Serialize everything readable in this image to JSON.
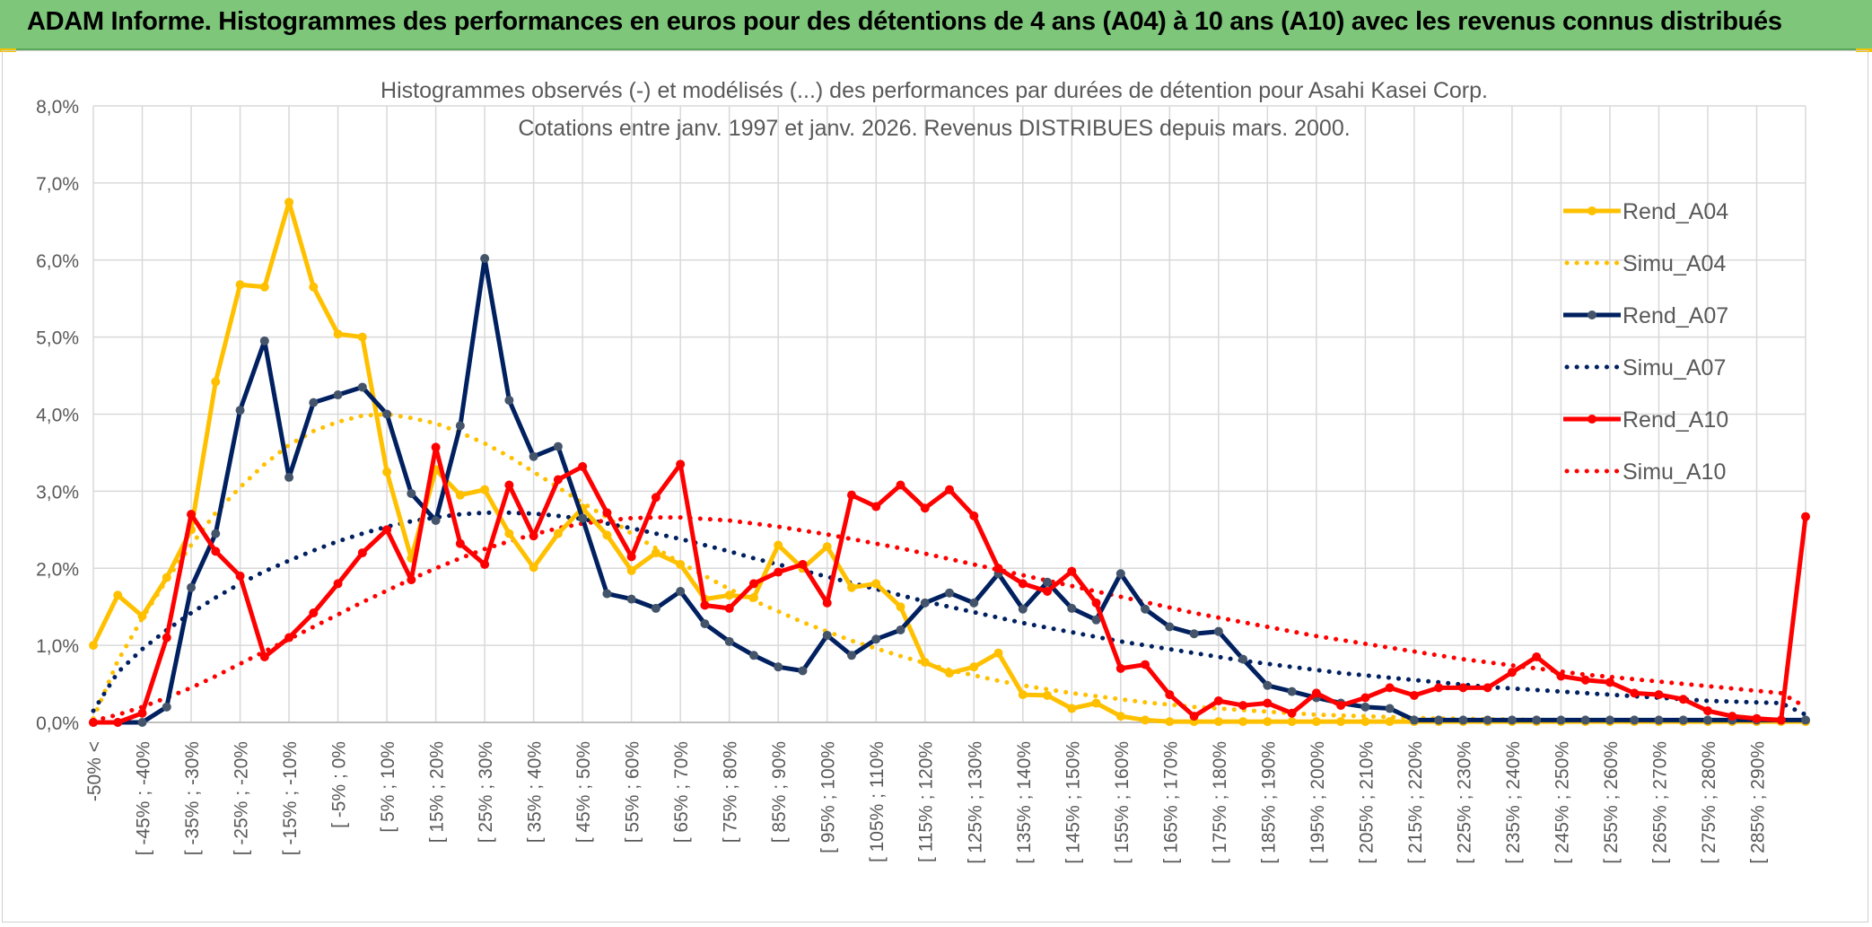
{
  "header": {
    "title": "ADAM Informe. Histogrammes des performances en euros pour des détentions de 4 ans (A04) à 10 ans (A10) avec les revenus connus distribués"
  },
  "chart_data": {
    "type": "line",
    "title": "Histogrammes observés (-) et modélisés (...) des performances par durées de détention pour Asahi Kasei Corp.",
    "subtitle": "Cotations entre janv. 1997 et janv. 2026. Revenus DISTRIBUES depuis mars. 2000.",
    "xlabel": "",
    "ylabel": "",
    "ylim": [
      0,
      8
    ],
    "yticks": [
      "0,0%",
      "1,0%",
      "2,0%",
      "3,0%",
      "4,0%",
      "5,0%",
      "6,0%",
      "7,0%",
      "8,0%"
    ],
    "grid": true,
    "legend_position": "top-right",
    "x_tick_labels": [
      "-50% <",
      "[ -45% ; -40%",
      "[ -35% ; -30%",
      "[ -25% ; -20%",
      "[ -15% ; -10%",
      "[ -5% ; 0%",
      "[ 5% ; 10%",
      "[ 15% ; 20%",
      "[ 25% ; 30%",
      "[ 35% ; 40%",
      "[ 45% ; 50%",
      "[ 55% ; 60%",
      "[ 65% ; 70%",
      "[ 75% ; 80%",
      "[ 85% ; 90%",
      "[ 95% ; 100%",
      "[ 105% ; 110%",
      "[ 115% ; 120%",
      "[ 125% ; 130%",
      "[ 135% ; 140%",
      "[ 145% ; 150%",
      "[ 155% ; 160%",
      "[ 165% ; 170%",
      "[ 175% ; 180%",
      "[ 185% ; 190%",
      "[ 195% ; 200%",
      "[ 205% ; 210%",
      "[ 215% ; 220%",
      "[ 225% ; 230%",
      "[ 235% ; 240%",
      "[ 245% ; 250%",
      "[ 255% ; 260%",
      "[ 265% ; 270%",
      "[ 275% ; 280%",
      "[ 285% ; 290%"
    ],
    "series": [
      {
        "name": "Rend_A04",
        "style": "solid",
        "color": "#ffc000",
        "values": [
          1.0,
          1.65,
          1.38,
          1.88,
          2.5,
          4.42,
          5.68,
          5.65,
          6.75,
          5.65,
          5.04,
          5.0,
          3.25,
          2.13,
          3.28,
          2.95,
          3.02,
          2.45,
          2.01,
          2.45,
          2.78,
          2.43,
          1.97,
          2.2,
          2.05,
          1.6,
          1.65,
          1.62,
          2.3,
          2.0,
          2.28,
          1.75,
          1.8,
          1.5,
          0.78,
          0.64,
          0.72,
          0.9,
          0.36,
          0.35,
          0.18,
          0.25,
          0.08,
          0.03,
          0.01,
          0.01,
          0.01,
          0.01,
          0.01,
          0.01,
          0.01,
          0.01,
          0.01,
          0.01,
          0.01,
          0.01,
          0.01,
          0.01,
          0.01,
          0.01,
          0.01,
          0.01,
          0.01,
          0.01,
          0.01,
          0.01,
          0.01,
          0.01,
          0.01,
          0.01,
          0.01
        ]
      },
      {
        "name": "Simu_A04",
        "style": "dotted",
        "color": "#ffc000",
        "values": [
          0.05,
          0.8,
          1.35,
          1.85,
          2.3,
          2.72,
          3.05,
          3.35,
          3.6,
          3.78,
          3.9,
          3.98,
          4.0,
          3.95,
          3.88,
          3.76,
          3.62,
          3.45,
          3.25,
          3.05,
          2.85,
          2.66,
          2.45,
          2.26,
          2.07,
          1.9,
          1.73,
          1.58,
          1.44,
          1.3,
          1.18,
          1.06,
          0.96,
          0.86,
          0.77,
          0.68,
          0.61,
          0.54,
          0.48,
          0.43,
          0.38,
          0.34,
          0.3,
          0.26,
          0.23,
          0.2,
          0.18,
          0.16,
          0.14,
          0.12,
          0.1,
          0.09,
          0.08,
          0.07,
          0.06,
          0.05,
          0.05,
          0.04,
          0.04,
          0.03,
          0.03,
          0.03,
          0.02,
          0.02,
          0.02,
          0.02,
          0.01,
          0.01,
          0.01,
          0.01,
          0.01
        ]
      },
      {
        "name": "Rend_A07",
        "style": "solid",
        "color": "#002060",
        "values": [
          0.0,
          0.0,
          0.0,
          0.2,
          1.75,
          2.45,
          4.05,
          4.95,
          3.18,
          4.15,
          4.25,
          4.35,
          4.0,
          2.97,
          2.62,
          3.85,
          6.02,
          4.18,
          3.45,
          3.58,
          2.65,
          1.67,
          1.6,
          1.48,
          1.7,
          1.28,
          1.05,
          0.87,
          0.72,
          0.67,
          1.13,
          0.87,
          1.08,
          1.2,
          1.55,
          1.68,
          1.55,
          1.93,
          1.47,
          1.82,
          1.48,
          1.33,
          1.93,
          1.47,
          1.24,
          1.15,
          1.18,
          0.82,
          0.48,
          0.4,
          0.32,
          0.25,
          0.2,
          0.18,
          0.03,
          0.03,
          0.03,
          0.03,
          0.03,
          0.03,
          0.03,
          0.03,
          0.03,
          0.03,
          0.03,
          0.03,
          0.03,
          0.03,
          0.03,
          0.03,
          0.03
        ]
      },
      {
        "name": "Simu_A07",
        "style": "dotted",
        "color": "#002060",
        "values": [
          0.15,
          0.65,
          0.95,
          1.2,
          1.42,
          1.62,
          1.8,
          1.96,
          2.1,
          2.23,
          2.35,
          2.45,
          2.54,
          2.61,
          2.66,
          2.7,
          2.72,
          2.72,
          2.71,
          2.68,
          2.64,
          2.58,
          2.52,
          2.45,
          2.38,
          2.3,
          2.22,
          2.13,
          2.05,
          1.97,
          1.89,
          1.81,
          1.73,
          1.65,
          1.57,
          1.5,
          1.43,
          1.36,
          1.29,
          1.23,
          1.17,
          1.11,
          1.05,
          1.0,
          0.95,
          0.9,
          0.85,
          0.8,
          0.76,
          0.72,
          0.68,
          0.64,
          0.61,
          0.58,
          0.55,
          0.52,
          0.49,
          0.46,
          0.44,
          0.42,
          0.4,
          0.38,
          0.36,
          0.34,
          0.32,
          0.3,
          0.28,
          0.27,
          0.26,
          0.25,
          0.1
        ]
      },
      {
        "name": "Rend_A10",
        "style": "solid",
        "color": "#ff0000",
        "values": [
          0.0,
          0.0,
          0.12,
          1.1,
          2.7,
          2.22,
          1.9,
          0.85,
          1.1,
          1.42,
          1.8,
          2.2,
          2.5,
          1.85,
          3.57,
          2.32,
          2.05,
          3.08,
          2.42,
          3.15,
          3.32,
          2.72,
          2.15,
          2.92,
          3.35,
          1.52,
          1.48,
          1.8,
          1.95,
          2.05,
          1.55,
          2.95,
          2.8,
          3.08,
          2.78,
          3.02,
          2.68,
          2.0,
          1.8,
          1.7,
          1.96,
          1.55,
          0.7,
          0.75,
          0.36,
          0.08,
          0.28,
          0.22,
          0.25,
          0.12,
          0.38,
          0.22,
          0.32,
          0.45,
          0.35,
          0.45,
          0.45,
          0.45,
          0.65,
          0.85,
          0.6,
          0.55,
          0.52,
          0.38,
          0.36,
          0.3,
          0.15,
          0.08,
          0.05,
          0.03,
          2.67
        ]
      },
      {
        "name": "Simu_A10",
        "style": "dotted",
        "color": "#ff0000",
        "values": [
          0.02,
          0.1,
          0.2,
          0.32,
          0.45,
          0.6,
          0.76,
          0.92,
          1.08,
          1.24,
          1.4,
          1.56,
          1.71,
          1.86,
          2.0,
          2.13,
          2.25,
          2.35,
          2.44,
          2.52,
          2.58,
          2.62,
          2.65,
          2.66,
          2.66,
          2.64,
          2.62,
          2.58,
          2.54,
          2.49,
          2.44,
          2.38,
          2.32,
          2.26,
          2.19,
          2.12,
          2.05,
          1.98,
          1.91,
          1.84,
          1.77,
          1.7,
          1.63,
          1.56,
          1.49,
          1.42,
          1.36,
          1.3,
          1.24,
          1.18,
          1.12,
          1.07,
          1.02,
          0.97,
          0.92,
          0.87,
          0.82,
          0.78,
          0.74,
          0.7,
          0.66,
          0.62,
          0.59,
          0.56,
          0.53,
          0.5,
          0.47,
          0.44,
          0.41,
          0.38,
          0.2
        ]
      }
    ]
  }
}
